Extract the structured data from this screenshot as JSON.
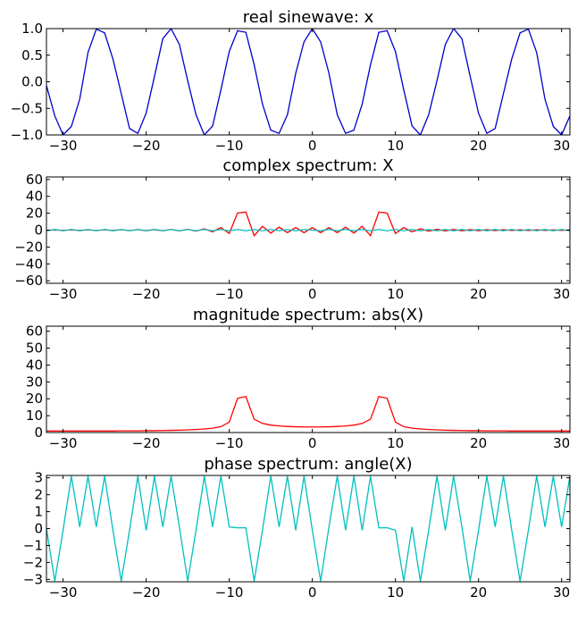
{
  "chart_data": [
    {
      "type": "line",
      "title": "real sinewave: x",
      "xlim": [
        -32,
        31
      ],
      "ylim": [
        -1.0,
        1.0
      ],
      "xticks": [
        -30,
        -20,
        -10,
        0,
        10,
        20,
        30
      ],
      "yticks": [
        -1.0,
        -0.5,
        0.0,
        0.5,
        1.0
      ],
      "ytick_labels": [
        "−1.0",
        "−0.5",
        "0.0",
        "0.5",
        "1.0"
      ],
      "series": [
        {
          "color": "#0000cc",
          "x": [
            -32,
            -31,
            -30,
            -29,
            -28,
            -27,
            -26,
            -25,
            -24,
            -23,
            -22,
            -21,
            -20,
            -19,
            -18,
            -17,
            -16,
            -15,
            -14,
            -13,
            -12,
            -11,
            -10,
            -9,
            -8,
            -7,
            -6,
            -5,
            -4,
            -3,
            -2,
            -1,
            0,
            1,
            2,
            3,
            4,
            5,
            6,
            7,
            8,
            9,
            10,
            11,
            12,
            13,
            14,
            15,
            16,
            17,
            18,
            19,
            20,
            21,
            22,
            23,
            24,
            25,
            26,
            27,
            28,
            29,
            30,
            31
          ],
          "y": [
            -0.07,
            -0.64,
            -1.0,
            -0.84,
            -0.33,
            0.55,
            0.99,
            0.92,
            0.43,
            -0.22,
            -0.88,
            -0.97,
            -0.59,
            0.1,
            0.81,
            1.0,
            0.7,
            0.02,
            -0.62,
            -1.0,
            -0.83,
            -0.15,
            0.57,
            0.96,
            0.93,
            0.32,
            -0.42,
            -0.91,
            -0.97,
            -0.62,
            0.16,
            0.75,
            1.0,
            0.75,
            0.16,
            -0.62,
            -0.97,
            -0.91,
            -0.42,
            0.32,
            0.93,
            0.96,
            0.57,
            -0.15,
            -0.83,
            -1.0,
            -0.62,
            0.02,
            0.7,
            1.0,
            0.81,
            0.1,
            -0.59,
            -0.97,
            -0.88,
            -0.22,
            0.43,
            0.92,
            0.99,
            0.55,
            -0.33,
            -0.84,
            -1.0,
            -0.64
          ]
        }
      ]
    },
    {
      "type": "line",
      "title": "complex spectrum: X",
      "xlim": [
        -32,
        31
      ],
      "ylim": [
        -63,
        63
      ],
      "xticks": [
        -30,
        -20,
        -10,
        0,
        10,
        20,
        30
      ],
      "yticks": [
        -60,
        -40,
        -20,
        0,
        20,
        40,
        60
      ],
      "ytick_labels": [
        "−60",
        "−40",
        "−20",
        "0",
        "20",
        "40",
        "60"
      ],
      "series": [
        {
          "color": "#ff0000",
          "x": [
            -32,
            -31,
            -30,
            -29,
            -28,
            -27,
            -26,
            -25,
            -24,
            -23,
            -22,
            -21,
            -20,
            -19,
            -18,
            -17,
            -16,
            -15,
            -14,
            -13,
            -12,
            -11,
            -10,
            -9,
            -8,
            -7,
            -6,
            -5,
            -4,
            -3,
            -2,
            -1,
            0,
            1,
            2,
            3,
            4,
            5,
            6,
            7,
            8,
            9,
            10,
            11,
            12,
            13,
            14,
            15,
            16,
            17,
            18,
            19,
            20,
            21,
            22,
            23,
            24,
            25,
            26,
            27,
            28,
            29,
            30,
            31
          ],
          "y": [
            -0.3,
            0.3,
            -0.3,
            0.3,
            -0.3,
            0.4,
            -0.4,
            0.4,
            -0.4,
            0.5,
            -0.5,
            0.5,
            -0.6,
            0.6,
            -0.7,
            0.8,
            -0.9,
            1.0,
            -1.2,
            1.5,
            -2.0,
            3.0,
            -4.0,
            20.3,
            21.3,
            -6.6,
            4.5,
            -3.5,
            3.5,
            -3.0,
            3.0,
            -3.0,
            3.0,
            -3.0,
            3.0,
            -3.0,
            3.5,
            -3.5,
            4.5,
            -6.6,
            21.3,
            20.3,
            -4.0,
            3.0,
            -2.0,
            1.5,
            -1.2,
            1.0,
            -0.9,
            0.8,
            -0.7,
            0.6,
            -0.6,
            0.5,
            -0.5,
            0.5,
            -0.4,
            0.4,
            -0.4,
            0.4,
            -0.3,
            0.3,
            -0.3,
            0.3
          ]
        },
        {
          "color": "#00bfbf",
          "x": [
            -32,
            -31,
            -30,
            -29,
            -28,
            -27,
            -26,
            -25,
            -24,
            -23,
            -22,
            -21,
            -20,
            -19,
            -18,
            -17,
            -16,
            -15,
            -14,
            -13,
            -12,
            -11,
            -10,
            -9,
            -8,
            -7,
            -6,
            -5,
            -4,
            -3,
            -2,
            -1,
            0,
            1,
            2,
            3,
            4,
            5,
            6,
            7,
            8,
            9,
            10,
            11,
            12,
            13,
            14,
            15,
            16,
            17,
            18,
            19,
            20,
            21,
            22,
            23,
            24,
            25,
            26,
            27,
            28,
            29,
            30,
            31
          ],
          "y": [
            -0.8,
            0.8,
            -0.8,
            0.8,
            -0.8,
            0.8,
            -0.8,
            0.8,
            -0.8,
            0.8,
            -0.8,
            0.8,
            -0.8,
            0.8,
            -0.8,
            0.8,
            -0.8,
            0.8,
            -0.8,
            0.8,
            -0.8,
            0.8,
            -0.8,
            0.8,
            -0.8,
            0.8,
            -0.8,
            0.8,
            -0.8,
            0.8,
            -0.8,
            0.8,
            0.0,
            -0.8,
            0.8,
            -0.8,
            0.8,
            -0.8,
            0.8,
            -0.8,
            0.8,
            -0.8,
            0.8,
            -0.8,
            0.8,
            -0.8,
            0.8,
            -0.8,
            0.8,
            -0.8,
            0.8,
            -0.8,
            0.8,
            -0.8,
            0.8,
            -0.8,
            0.8,
            -0.8,
            0.8,
            -0.8,
            0.8,
            -0.8,
            0.8,
            -0.8
          ]
        }
      ]
    },
    {
      "type": "line",
      "title": "magnitude spectrum: abs(X)",
      "xlim": [
        -32,
        31
      ],
      "ylim": [
        0,
        63
      ],
      "xticks": [
        -30,
        -20,
        -10,
        0,
        10,
        20,
        30
      ],
      "yticks": [
        0,
        10,
        20,
        30,
        40,
        50,
        60
      ],
      "ytick_labels": [
        "0",
        "10",
        "20",
        "30",
        "40",
        "50",
        "60"
      ],
      "series": [
        {
          "color": "#ff0000",
          "x": [
            -32,
            -31,
            -30,
            -29,
            -28,
            -27,
            -26,
            -25,
            -24,
            -23,
            -22,
            -21,
            -20,
            -19,
            -18,
            -17,
            -16,
            -15,
            -14,
            -13,
            -12,
            -11,
            -10,
            -9,
            -8,
            -7,
            -6,
            -5,
            -4,
            -3,
            -2,
            -1,
            0,
            1,
            2,
            3,
            4,
            5,
            6,
            7,
            8,
            9,
            10,
            11,
            12,
            13,
            14,
            15,
            16,
            17,
            18,
            19,
            20,
            21,
            22,
            23,
            24,
            25,
            26,
            27,
            28,
            29,
            30,
            31
          ],
          "y": [
            0.9,
            0.9,
            0.9,
            0.9,
            0.9,
            0.9,
            0.9,
            0.9,
            0.9,
            1.0,
            1.0,
            1.0,
            1.1,
            1.1,
            1.2,
            1.3,
            1.4,
            1.6,
            1.8,
            2.1,
            2.6,
            3.5,
            6.2,
            20.3,
            21.3,
            7.9,
            5.4,
            4.4,
            3.9,
            3.6,
            3.4,
            3.3,
            3.3,
            3.3,
            3.4,
            3.6,
            3.9,
            4.4,
            5.4,
            7.9,
            21.3,
            20.3,
            6.2,
            3.5,
            2.6,
            2.1,
            1.8,
            1.6,
            1.4,
            1.3,
            1.2,
            1.1,
            1.1,
            1.0,
            1.0,
            1.0,
            0.9,
            0.9,
            0.9,
            0.9,
            0.9,
            0.9,
            0.9,
            0.9
          ]
        }
      ]
    },
    {
      "type": "line",
      "title": "phase spectrum: angle(X)",
      "xlim": [
        -32,
        31
      ],
      "ylim": [
        -3.14,
        3.14
      ],
      "xticks": [
        -30,
        -20,
        -10,
        0,
        10,
        20,
        30
      ],
      "yticks": [
        -3,
        -2,
        -1,
        0,
        1,
        2,
        3
      ],
      "ytick_labels": [
        "−3",
        "−2",
        "−1",
        "0",
        "1",
        "2",
        "3"
      ],
      "series": [
        {
          "color": "#00bfbf",
          "x": [
            -32,
            -31,
            -30,
            -29,
            -28,
            -27,
            -26,
            -25,
            -24,
            -23,
            -22,
            -21,
            -20,
            -19,
            -18,
            -17,
            -16,
            -15,
            -14,
            -13,
            -12,
            -11,
            -10,
            -9,
            -8,
            -7,
            -6,
            -5,
            -4,
            -3,
            -2,
            -1,
            0,
            1,
            2,
            3,
            4,
            5,
            6,
            7,
            8,
            9,
            10,
            11,
            12,
            13,
            14,
            15,
            16,
            17,
            18,
            19,
            20,
            21,
            22,
            23,
            24,
            25,
            26,
            27,
            28,
            29,
            30,
            31
          ],
          "y": [
            0.0,
            -3.1,
            -0.1,
            3.1,
            0.1,
            3.1,
            0.1,
            3.1,
            -0.1,
            -3.1,
            -0.1,
            3.1,
            -0.1,
            3.1,
            0.1,
            3.1,
            0.1,
            -3.1,
            -0.1,
            3.1,
            0.1,
            3.1,
            0.1,
            0.05,
            0.05,
            -3.1,
            -0.1,
            3.1,
            0.1,
            3.1,
            -0.1,
            3.1,
            -0.1,
            -3.1,
            0.1,
            3.1,
            -0.1,
            3.1,
            -0.1,
            3.1,
            0.05,
            0.05,
            -0.1,
            -3.1,
            0.1,
            -3.1,
            -0.1,
            3.1,
            -0.1,
            3.1,
            0.1,
            -3.1,
            -0.1,
            3.1,
            0.1,
            3.1,
            -0.1,
            -3.1,
            -0.1,
            3.1,
            0.1,
            3.1,
            0.1,
            3.1
          ]
        }
      ]
    }
  ]
}
